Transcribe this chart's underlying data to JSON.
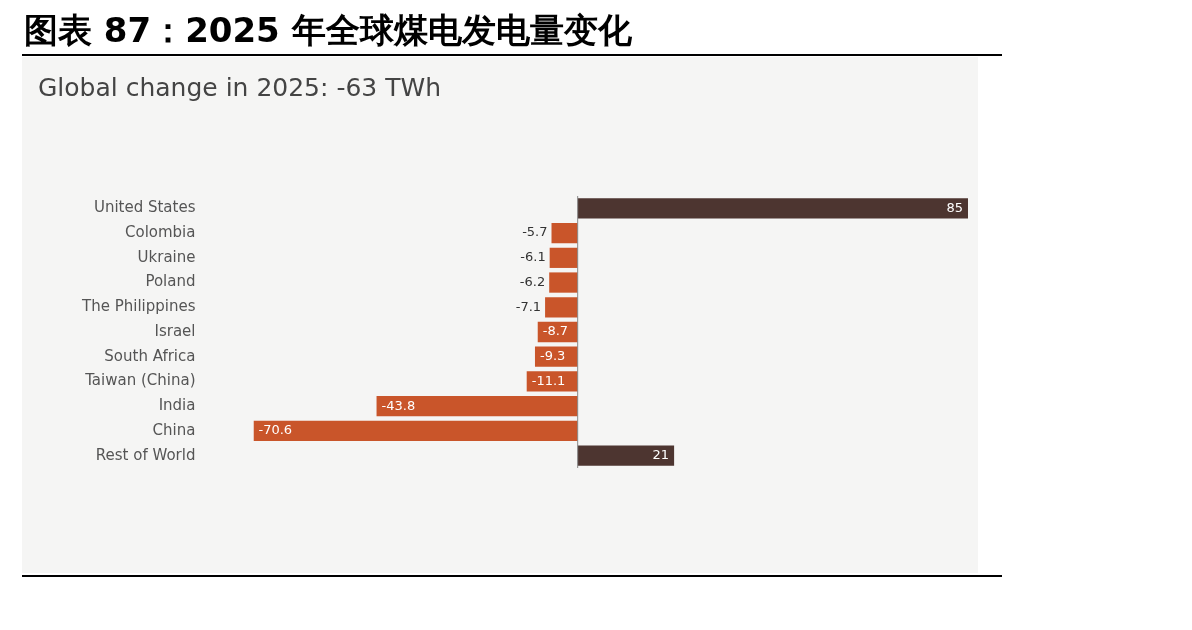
{
  "chart_data": {
    "type": "bar",
    "orientation": "horizontal",
    "title": "图表 87：2025 年全球煤电发电量变化",
    "subtitle": "Global change in 2025: -63 TWh",
    "categories": [
      "United States",
      "Colombia",
      "Ukraine",
      "Poland",
      "The Philippines",
      "Israel",
      "South Africa",
      "Taiwan (China)",
      "India",
      "China",
      "Rest of World"
    ],
    "values": [
      85,
      -5.7,
      -6.1,
      -6.2,
      -7.1,
      -8.7,
      -9.3,
      -11.1,
      -43.8,
      -70.6,
      21
    ],
    "colors": [
      "#4d3530",
      "#c9552a",
      "#c9552a",
      "#c9552a",
      "#c9552a",
      "#c9552a",
      "#c9552a",
      "#c9552a",
      "#c9552a",
      "#c9552a",
      "#4d3530"
    ],
    "data_labels": true,
    "grid": false,
    "legend": false
  }
}
